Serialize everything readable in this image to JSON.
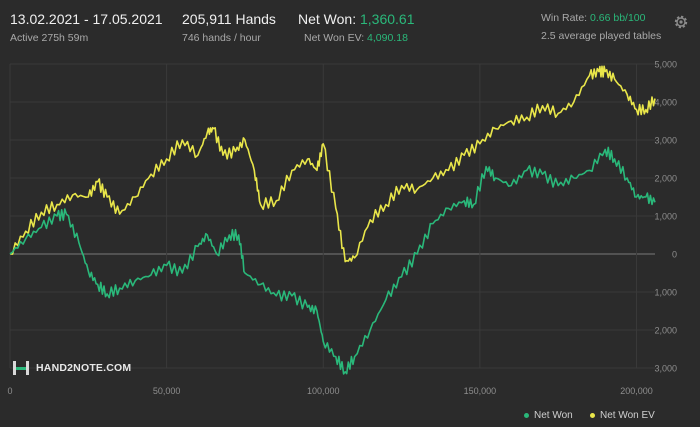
{
  "header": {
    "date_range": "13.02.2021 - 17.05.2021",
    "active": "Active 275h 59m",
    "hands": "205,911 Hands",
    "hands_per_hour": "746 hands / hour",
    "net_won_label": "Net Won: ",
    "net_won_value": "1,360.61",
    "net_won_ev_label": "Net Won  EV: ",
    "net_won_ev_value": "4,090.18",
    "win_rate_label": "Win Rate: ",
    "win_rate_value": "0.66 bb/100",
    "avg_tables": "2.5 average played tables"
  },
  "logo": {
    "text": "HAND2NOTE.COM"
  },
  "colors": {
    "net_won": "#2ab87a",
    "net_won_ev": "#e9e64a",
    "background": "#2b2b2b",
    "grid": "#3a3a3a",
    "zero_line": "#7a7a7a"
  },
  "icons": {
    "settings": "gear-icon"
  },
  "chart_data": {
    "type": "line",
    "xlim": [
      0,
      205911
    ],
    "ylim": [
      -3000,
      5000
    ],
    "x_ticks": [
      0,
      50000,
      100000,
      150000,
      200000
    ],
    "x_tick_labels": [
      "0",
      "50,000",
      "100,000",
      "150,000",
      "200,000"
    ],
    "y_ticks": [
      5000,
      4000,
      3000,
      2000,
      1000,
      0,
      -1000,
      -2000,
      -3000
    ],
    "y_tick_labels": [
      "5,000",
      "4,000",
      "3,000",
      "2,000",
      "1,000",
      "0",
      "1,000",
      "2,000",
      "3,000"
    ],
    "grid": true,
    "legend_position": "bottom-right",
    "series": [
      {
        "name": "Net Won",
        "color": "#2ab87a",
        "x": [
          0,
          5000,
          10000,
          15000,
          18000,
          22000,
          25000,
          28000,
          31000,
          35000,
          40000,
          45000,
          50000,
          55000,
          60000,
          63000,
          66000,
          70000,
          73000,
          75000,
          80000,
          85000,
          90000,
          95000,
          98000,
          100000,
          104000,
          107000,
          110000,
          115000,
          120000,
          125000,
          130000,
          135000,
          140000,
          145000,
          148000,
          152000,
          155000,
          160000,
          165000,
          170000,
          175000,
          180000,
          185000,
          190000,
          193000,
          197000,
          200000,
          203000,
          205911
        ],
        "y": [
          0,
          400,
          700,
          1000,
          1050,
          300,
          -450,
          -800,
          -1050,
          -900,
          -700,
          -550,
          -300,
          -500,
          200,
          500,
          0,
          500,
          500,
          -500,
          -800,
          -1100,
          -1100,
          -1400,
          -1500,
          -2300,
          -2700,
          -3100,
          -2700,
          -2000,
          -1200,
          -600,
          0,
          800,
          1200,
          1400,
          1300,
          2300,
          2000,
          1800,
          2200,
          2100,
          1800,
          2000,
          2200,
          2750,
          2500,
          2000,
          1500,
          1500,
          1360.61
        ]
      },
      {
        "name": "Net Won  EV",
        "color": "#e9e64a",
        "x": [
          0,
          5000,
          10000,
          15000,
          20000,
          25000,
          28000,
          31000,
          35000,
          40000,
          45000,
          50000,
          55000,
          60000,
          63000,
          65000,
          68000,
          72000,
          75000,
          78000,
          80000,
          85000,
          90000,
          95000,
          98000,
          100000,
          104000,
          107000,
          110000,
          115000,
          120000,
          125000,
          130000,
          135000,
          140000,
          145000,
          150000,
          155000,
          160000,
          165000,
          170000,
          175000,
          180000,
          185000,
          188000,
          190000,
          193000,
          197000,
          200000,
          203000,
          205911
        ],
        "y": [
          0,
          600,
          1100,
          1300,
          1550,
          1500,
          1900,
          1500,
          1050,
          1500,
          2100,
          2500,
          3000,
          2600,
          3200,
          3300,
          2600,
          2700,
          3000,
          2200,
          1300,
          1400,
          2200,
          2500,
          2200,
          2900,
          1200,
          -200,
          -100,
          900,
          1300,
          1800,
          1700,
          2000,
          2200,
          2600,
          2900,
          3300,
          3500,
          3600,
          3900,
          3700,
          4000,
          4700,
          4800,
          4800,
          4600,
          4200,
          3800,
          3800,
          4090.18
        ]
      }
    ]
  }
}
